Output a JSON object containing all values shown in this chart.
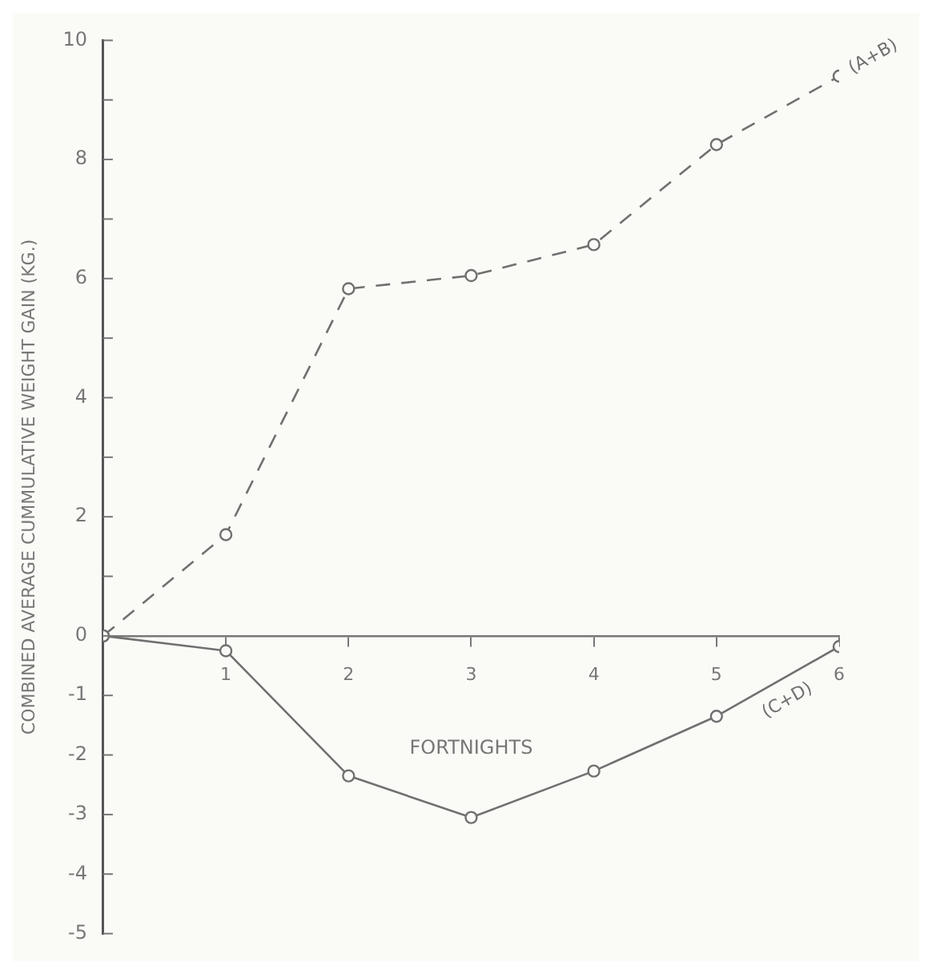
{
  "chart_data": {
    "type": "line",
    "xlabel": "FORTNIGHTS",
    "ylabel": "COMBINED AVERAGE CUMMULATIVE WEIGHT GAIN (KG.)",
    "x": [
      0,
      1,
      2,
      3,
      4,
      5,
      6
    ],
    "series": [
      {
        "name": "(A+B)",
        "color": "#707070",
        "line_style": "dashed",
        "values": [
          0,
          1.7,
          5.83,
          6.05,
          6.57,
          8.25,
          9.4
        ]
      },
      {
        "name": "(C+D)",
        "color": "#707070",
        "line_style": "solid",
        "values": [
          0,
          -0.25,
          -2.35,
          -3.05,
          -2.27,
          -1.35,
          -0.18
        ]
      }
    ],
    "xlim": [
      0,
      6
    ],
    "xticks": [
      1,
      2,
      3,
      4,
      5,
      6
    ],
    "ylim": [
      -5,
      10
    ],
    "yticks": [
      -5,
      -4,
      -3,
      -2,
      -1,
      0,
      {
        "value": 1,
        "label": null
      },
      2,
      {
        "value": 3,
        "label": null
      },
      4,
      {
        "value": 5,
        "label": null
      },
      6,
      {
        "value": 7,
        "label": null
      },
      8,
      {
        "value": 9,
        "label": null
      },
      10
    ],
    "grid": false,
    "legend": false,
    "marker": "circle"
  }
}
